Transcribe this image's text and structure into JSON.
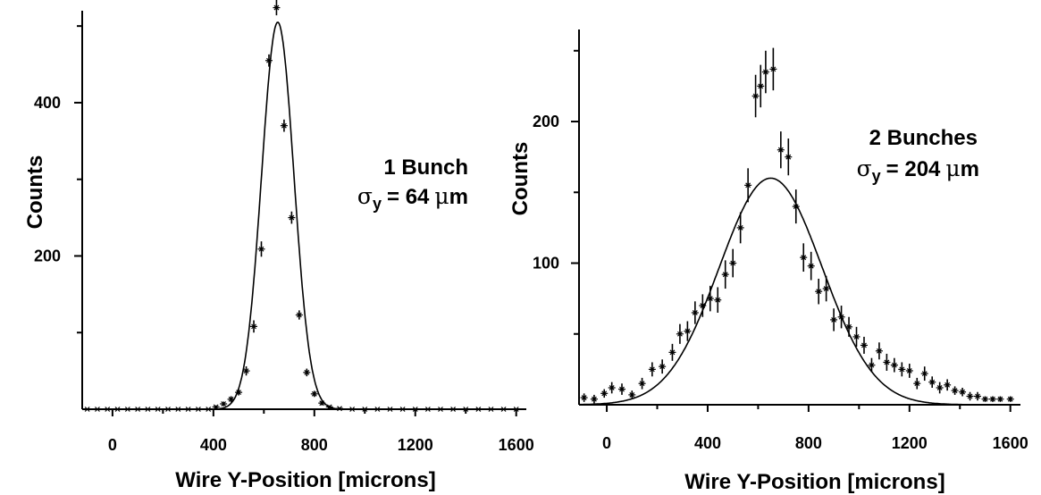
{
  "chart_data": [
    {
      "type": "scatter",
      "xlabel": "Wire Y-Position [microns]",
      "ylabel": "Counts",
      "xlim": [
        -120,
        1640
      ],
      "ylim": [
        0,
        520
      ],
      "xticks": [
        0,
        400,
        800,
        1200,
        1600
      ],
      "yticks_labeled": [
        200,
        400
      ],
      "annotation": {
        "line1": "1 Bunch",
        "sigma_symbol": "σ",
        "sigma_sub": "y",
        "sigma_value": "= 64",
        "unit_mu": "μ",
        "unit_rest": "m"
      },
      "fit": {
        "type": "gaussian",
        "amplitude": 505,
        "mean": 655,
        "sigma": 64,
        "baseline": 0
      },
      "series": [
        {
          "x": [
            -100,
            -60,
            -20,
            20,
            60,
            100,
            140,
            180,
            220,
            260,
            300,
            340,
            380,
            410,
            440,
            470,
            500,
            530,
            560,
            590,
            620,
            650,
            680,
            710,
            740,
            770,
            800,
            830,
            860,
            900,
            950,
            1000,
            1050,
            1100,
            1150,
            1200,
            1250,
            1300,
            1350,
            1400,
            1450,
            1500,
            1550,
            1600
          ],
          "y": [
            0,
            0,
            0,
            0,
            0,
            0,
            0,
            0,
            0,
            0,
            0,
            0,
            0,
            3,
            7,
            13,
            22,
            50,
            108,
            209,
            455,
            524,
            370,
            250,
            123,
            48,
            20,
            8,
            3,
            1,
            0,
            0,
            0,
            0,
            0,
            0,
            0,
            0,
            0,
            0,
            0,
            0,
            0,
            0
          ],
          "err": [
            1,
            1,
            1,
            1,
            1,
            1,
            1,
            1,
            1,
            1,
            1,
            1,
            1,
            2,
            3,
            4,
            4,
            6,
            8,
            10,
            8,
            10,
            8,
            8,
            6,
            5,
            4,
            3,
            2,
            1,
            1,
            1,
            1,
            1,
            1,
            1,
            1,
            1,
            1,
            1,
            1,
            1,
            1,
            1
          ]
        }
      ]
    },
    {
      "type": "scatter",
      "xlabel": "Wire Y-Position [microns]",
      "ylabel": "Counts",
      "xlim": [
        -110,
        1640
      ],
      "ylim": [
        0,
        265
      ],
      "xticks": [
        0,
        400,
        800,
        1200,
        1600
      ],
      "yticks_labeled": [
        100,
        200
      ],
      "annotation": {
        "line1": "2 Bunches",
        "sigma_symbol": "σ",
        "sigma_sub": "y",
        "sigma_value": "= 204",
        "unit_mu": "μ",
        "unit_rest": "m"
      },
      "fit": {
        "type": "gaussian",
        "amplitude": 160,
        "mean": 650,
        "sigma": 204,
        "baseline": 0
      },
      "series": [
        {
          "x": [
            -90,
            -50,
            -10,
            20,
            60,
            100,
            140,
            180,
            220,
            260,
            290,
            320,
            350,
            380,
            410,
            440,
            470,
            500,
            530,
            560,
            590,
            610,
            630,
            660,
            690,
            720,
            750,
            780,
            810,
            840,
            870,
            900,
            930,
            960,
            990,
            1020,
            1050,
            1080,
            1110,
            1140,
            1170,
            1200,
            1230,
            1260,
            1290,
            1320,
            1350,
            1380,
            1410,
            1440,
            1470,
            1500,
            1530,
            1560,
            1600
          ],
          "y": [
            5,
            4,
            8,
            12,
            11,
            7,
            15,
            25,
            27,
            37,
            50,
            52,
            65,
            70,
            75,
            74,
            92,
            100,
            125,
            155,
            218,
            225,
            235,
            237,
            180,
            175,
            140,
            104,
            98,
            80,
            82,
            60,
            62,
            55,
            48,
            42,
            28,
            38,
            30,
            28,
            25,
            24,
            15,
            22,
            16,
            12,
            14,
            10,
            9,
            6,
            6,
            4,
            4,
            4,
            4
          ],
          "err": [
            3,
            3,
            3,
            4,
            4,
            3,
            4,
            5,
            5,
            6,
            7,
            7,
            8,
            8,
            9,
            9,
            10,
            10,
            11,
            12,
            15,
            15,
            15,
            15,
            13,
            13,
            12,
            10,
            10,
            9,
            9,
            8,
            8,
            7,
            7,
            6,
            5,
            6,
            6,
            5,
            5,
            5,
            4,
            5,
            4,
            4,
            4,
            3,
            3,
            3,
            3,
            2,
            2,
            2,
            2
          ]
        }
      ]
    }
  ]
}
